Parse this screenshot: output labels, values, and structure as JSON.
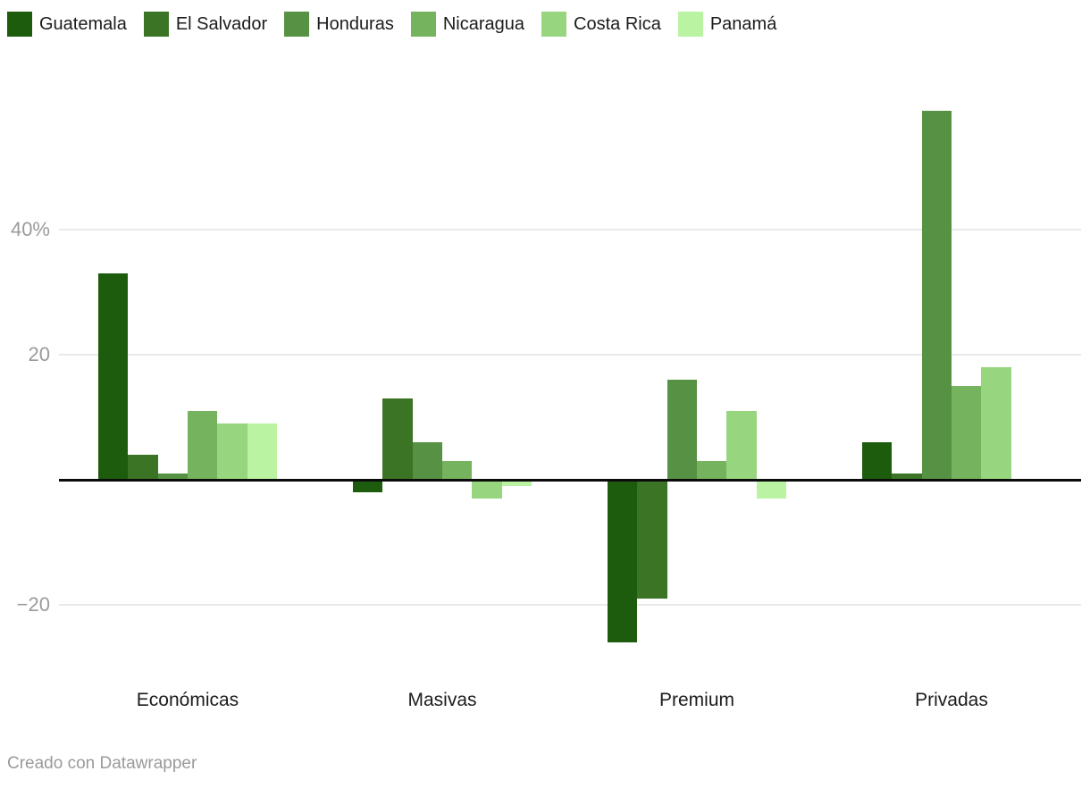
{
  "chart_data": {
    "type": "bar",
    "title": "",
    "categories": [
      "Económicas",
      "Masivas",
      "Premium",
      "Privadas"
    ],
    "series": [
      {
        "name": "Guatemala",
        "color": "#1d5c0d",
        "values": [
          33,
          -2,
          -26,
          6
        ]
      },
      {
        "name": "El Salvador",
        "color": "#3b7425",
        "values": [
          4,
          13,
          -19,
          1
        ]
      },
      {
        "name": "Honduras",
        "color": "#579144",
        "values": [
          1,
          6,
          16,
          59
        ]
      },
      {
        "name": "Nicaragua",
        "color": "#76b35e",
        "values": [
          11,
          3,
          3,
          15
        ]
      },
      {
        "name": "Costa Rica",
        "color": "#97d67e",
        "values": [
          9,
          -3,
          11,
          18
        ]
      },
      {
        "name": "Panamá",
        "color": "#baf3a2",
        "values": [
          9,
          -1,
          -3,
          0
        ]
      }
    ],
    "yticks": [
      {
        "value": 40,
        "label": "40%"
      },
      {
        "value": 20,
        "label": "20"
      },
      {
        "value": -20,
        "label": "−20"
      }
    ],
    "ylim": [
      -28,
      60
    ],
    "baseline_value": 0,
    "grid": true,
    "legend_position": "top",
    "xlabel": "",
    "ylabel": ""
  },
  "colors": {
    "background": "#ffffff",
    "gridline": "#e9e9e9",
    "baseline": "#0b0b0b",
    "tick_text": "#9b9b9b",
    "label_text": "#1c1c1c"
  },
  "footer": {
    "credit": "Creado con Datawrapper"
  }
}
